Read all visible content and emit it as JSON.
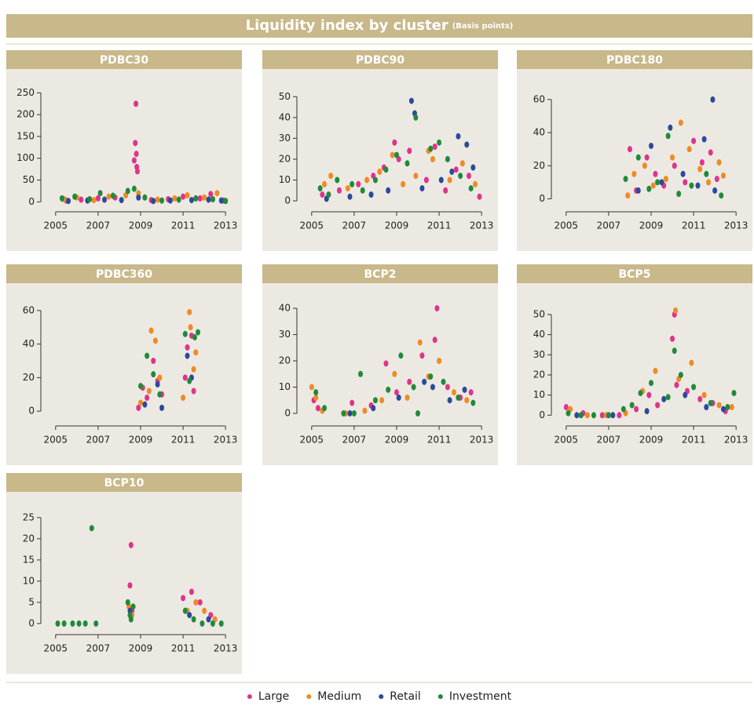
{
  "title": "Liquidity index by cluster",
  "subtitle": "(Basis points)",
  "legend": "bottom",
  "chart_data": [
    {
      "type": "scatter",
      "title": "PDBC30",
      "xlim": [
        2004.6,
        2013.4
      ],
      "xticks": [
        2005,
        2007,
        2009,
        2011,
        2013
      ],
      "ylim": [
        -12,
        265
      ],
      "yticks": [
        0,
        50,
        100,
        150,
        200,
        250
      ],
      "series": [
        {
          "name": "Large",
          "color": "#e0338a",
          "x": [
            2005.5,
            2006.2,
            2007.0,
            2007.8,
            2008.7,
            2008.75,
            2008.78,
            2008.8,
            2008.82,
            2008.85,
            2009.5,
            2010.3,
            2011.0,
            2011.8,
            2012.3,
            2012.9
          ],
          "values": [
            3,
            5,
            8,
            10,
            95,
            135,
            225,
            110,
            80,
            70,
            4,
            6,
            12,
            8,
            18,
            3
          ]
        },
        {
          "name": "Medium",
          "color": "#f08a24",
          "x": [
            2005.4,
            2006.0,
            2006.8,
            2007.5,
            2008.3,
            2008.9,
            2009.8,
            2010.6,
            2011.2,
            2012.0,
            2012.6,
            2013.0
          ],
          "values": [
            6,
            10,
            4,
            12,
            15,
            20,
            5,
            8,
            15,
            10,
            20,
            2
          ]
        },
        {
          "name": "Retail",
          "color": "#2b4a9b",
          "x": [
            2005.6,
            2006.5,
            2007.3,
            2008.1,
            2008.9,
            2009.6,
            2010.4,
            2011.4,
            2012.2,
            2012.8
          ],
          "values": [
            2,
            3,
            5,
            4,
            10,
            2,
            3,
            4,
            5,
            3
          ]
        },
        {
          "name": "Investment",
          "color": "#1f8a3c",
          "x": [
            2005.3,
            2005.9,
            2006.6,
            2007.1,
            2007.7,
            2008.4,
            2008.7,
            2009.2,
            2010.0,
            2010.8,
            2011.6,
            2012.4,
            2013.0
          ],
          "values": [
            8,
            12,
            6,
            20,
            14,
            25,
            30,
            10,
            3,
            5,
            8,
            6,
            2
          ]
        }
      ]
    },
    {
      "type": "scatter",
      "title": "PDBC90",
      "xlim": [
        2004.6,
        2013.4
      ],
      "xticks": [
        2005,
        2007,
        2009,
        2011,
        2013
      ],
      "ylim": [
        -3,
        55
      ],
      "yticks": [
        0,
        10,
        20,
        30,
        40,
        50
      ],
      "series": [
        {
          "name": "Large",
          "color": "#e0338a",
          "x": [
            2005.5,
            2006.3,
            2007.2,
            2007.9,
            2008.4,
            2008.9,
            2009.1,
            2009.6,
            2010.4,
            2010.8,
            2011.3,
            2011.8,
            2012.4,
            2012.9
          ],
          "values": [
            3,
            5,
            8,
            12,
            16,
            28,
            20,
            24,
            10,
            26,
            5,
            15,
            12,
            2
          ]
        },
        {
          "name": "Medium",
          "color": "#f08a24",
          "x": [
            2005.6,
            2005.9,
            2006.7,
            2007.6,
            2008.2,
            2008.8,
            2009.3,
            2009.9,
            2010.5,
            2010.7,
            2011.5,
            2012.1,
            2012.7
          ],
          "values": [
            8,
            12,
            6,
            10,
            14,
            22,
            8,
            12,
            24,
            20,
            10,
            18,
            8
          ]
        },
        {
          "name": "Retail",
          "color": "#2b4a9b",
          "x": [
            2005.7,
            2006.8,
            2007.8,
            2008.6,
            2009.7,
            2009.85,
            2010.2,
            2011.1,
            2011.6,
            2011.9,
            2012.3,
            2012.6
          ],
          "values": [
            1,
            2,
            3,
            5,
            48,
            42,
            6,
            10,
            14,
            31,
            27,
            16
          ]
        },
        {
          "name": "Investment",
          "color": "#1f8a3c",
          "x": [
            2005.4,
            2005.8,
            2006.2,
            2006.9,
            2007.4,
            2008.0,
            2008.5,
            2009.0,
            2009.5,
            2009.9,
            2010.6,
            2011.0,
            2011.4,
            2012.0,
            2012.5
          ],
          "values": [
            6,
            3,
            10,
            8,
            5,
            10,
            15,
            22,
            18,
            40,
            25,
            28,
            20,
            12,
            6
          ]
        }
      ]
    },
    {
      "type": "scatter",
      "title": "PDBC180",
      "xlim": [
        2004.6,
        2013.4
      ],
      "xticks": [
        2005,
        2007,
        2009,
        2011,
        2013
      ],
      "ylim": [
        -5,
        68
      ],
      "yticks": [
        0,
        20,
        40,
        60
      ],
      "series": [
        {
          "name": "Large",
          "color": "#e0338a",
          "x": [
            2008.0,
            2008.3,
            2008.8,
            2009.2,
            2009.6,
            2010.1,
            2010.6,
            2011.0,
            2011.4,
            2011.8,
            2012.1
          ],
          "values": [
            30,
            5,
            25,
            15,
            8,
            20,
            10,
            35,
            22,
            28,
            12
          ]
        },
        {
          "name": "Medium",
          "color": "#f08a24",
          "x": [
            2007.9,
            2008.2,
            2008.7,
            2009.1,
            2009.7,
            2010.0,
            2010.4,
            2010.8,
            2011.3,
            2011.7,
            2012.2,
            2012.4
          ],
          "values": [
            2,
            15,
            20,
            8,
            12,
            25,
            46,
            30,
            18,
            10,
            22,
            14
          ]
        },
        {
          "name": "Retail",
          "color": "#2b4a9b",
          "x": [
            2008.4,
            2009.0,
            2009.5,
            2009.9,
            2010.5,
            2011.2,
            2011.5,
            2011.9,
            2012.0
          ],
          "values": [
            5,
            32,
            10,
            43,
            15,
            8,
            36,
            60,
            5
          ]
        },
        {
          "name": "Investment",
          "color": "#1f8a3c",
          "x": [
            2007.8,
            2008.4,
            2008.9,
            2009.3,
            2009.8,
            2010.3,
            2010.9,
            2011.6,
            2012.3
          ],
          "values": [
            12,
            25,
            6,
            10,
            38,
            3,
            8,
            15,
            2
          ]
        }
      ]
    },
    {
      "type": "scatter",
      "title": "PDBC360",
      "xlim": [
        2004.6,
        2013.4
      ],
      "xticks": [
        2005,
        2007,
        2009,
        2011,
        2013
      ],
      "ylim": [
        -6,
        66
      ],
      "yticks": [
        0,
        20,
        40,
        60
      ],
      "series": [
        {
          "name": "Large",
          "color": "#e0338a",
          "x": [
            2008.9,
            2009.1,
            2009.3,
            2009.6,
            2009.8,
            2010.0,
            2011.1,
            2011.2,
            2011.4,
            2011.5
          ],
          "values": [
            2,
            14,
            8,
            30,
            18,
            10,
            20,
            38,
            45,
            12
          ]
        },
        {
          "name": "Medium",
          "color": "#f08a24",
          "x": [
            2009.0,
            2009.4,
            2009.5,
            2009.7,
            2009.9,
            2011.0,
            2011.3,
            2011.35,
            2011.5,
            2011.6
          ],
          "values": [
            5,
            12,
            48,
            42,
            20,
            8,
            59,
            50,
            25,
            35
          ]
        },
        {
          "name": "Retail",
          "color": "#2b4a9b",
          "x": [
            2009.2,
            2009.8,
            2010.0,
            2011.2,
            2011.4
          ],
          "values": [
            4,
            16,
            2,
            33,
            20
          ]
        },
        {
          "name": "Investment",
          "color": "#1f8a3c",
          "x": [
            2009.0,
            2009.3,
            2009.6,
            2009.9,
            2011.1,
            2011.3,
            2011.55,
            2011.7
          ],
          "values": [
            15,
            33,
            22,
            10,
            46,
            18,
            44,
            47
          ]
        }
      ]
    },
    {
      "type": "scatter",
      "title": "BCP2",
      "xlim": [
        2004.6,
        2013.4
      ],
      "xticks": [
        2005,
        2007,
        2009,
        2011,
        2013
      ],
      "ylim": [
        -3,
        43
      ],
      "yticks": [
        0,
        10,
        20,
        30,
        40
      ],
      "series": [
        {
          "name": "Large",
          "color": "#e0338a",
          "x": [
            2005.1,
            2005.3,
            2006.9,
            2007.8,
            2008.5,
            2009.0,
            2009.6,
            2010.2,
            2010.8,
            2010.9,
            2011.4,
            2012.0,
            2012.5
          ],
          "values": [
            5,
            2,
            4,
            3,
            19,
            8,
            12,
            22,
            28,
            40,
            10,
            6,
            8
          ]
        },
        {
          "name": "Medium",
          "color": "#f08a24",
          "x": [
            2005.0,
            2005.2,
            2005.5,
            2006.6,
            2007.5,
            2008.3,
            2008.9,
            2009.5,
            2010.1,
            2010.5,
            2011.0,
            2011.7,
            2012.3
          ],
          "values": [
            10,
            6,
            1,
            0,
            1,
            5,
            15,
            6,
            27,
            14,
            20,
            8,
            5
          ]
        },
        {
          "name": "Retail",
          "color": "#2b4a9b",
          "x": [
            2006.8,
            2007.9,
            2009.1,
            2010.3,
            2010.7,
            2011.5,
            2012.2
          ],
          "values": [
            0,
            2,
            6,
            12,
            10,
            5,
            9
          ]
        },
        {
          "name": "Investment",
          "color": "#1f8a3c",
          "x": [
            2005.2,
            2005.6,
            2006.5,
            2007.0,
            2007.3,
            2008.0,
            2008.6,
            2009.2,
            2009.8,
            2010.0,
            2010.6,
            2011.2,
            2011.9,
            2012.6
          ],
          "values": [
            8,
            2,
            0,
            0,
            15,
            5,
            9,
            22,
            10,
            0,
            14,
            12,
            6,
            4
          ]
        }
      ]
    },
    {
      "type": "scatter",
      "title": "BCP5",
      "xlim": [
        2004.6,
        2013.4
      ],
      "xticks": [
        2005,
        2007,
        2009,
        2011,
        2013
      ],
      "ylim": [
        -3,
        57
      ],
      "yticks": [
        0,
        10,
        20,
        30,
        40,
        50
      ],
      "series": [
        {
          "name": "Large",
          "color": "#e0338a",
          "x": [
            2005.0,
            2005.8,
            2006.7,
            2007.5,
            2008.3,
            2008.9,
            2009.3,
            2010.0,
            2010.1,
            2010.2,
            2010.7,
            2011.3,
            2011.9,
            2012.5
          ],
          "values": [
            4,
            1,
            0,
            0,
            3,
            10,
            5,
            38,
            50,
            15,
            12,
            8,
            6,
            2
          ]
        },
        {
          "name": "Medium",
          "color": "#f08a24",
          "x": [
            2005.2,
            2006.0,
            2006.9,
            2007.8,
            2008.6,
            2009.2,
            2010.15,
            2010.3,
            2010.9,
            2011.5,
            2012.2,
            2012.8
          ],
          "values": [
            3,
            0,
            0,
            1,
            12,
            22,
            52,
            18,
            26,
            10,
            5,
            4
          ]
        },
        {
          "name": "Retail",
          "color": "#2b4a9b",
          "x": [
            2005.5,
            2007.2,
            2008.8,
            2009.6,
            2010.6,
            2011.6,
            2012.4
          ],
          "values": [
            0,
            0,
            2,
            8,
            10,
            4,
            3
          ]
        },
        {
          "name": "Investment",
          "color": "#1f8a3c",
          "x": [
            2005.1,
            2005.7,
            2006.3,
            2007.0,
            2007.7,
            2008.1,
            2008.5,
            2009.0,
            2009.8,
            2010.1,
            2010.4,
            2011.0,
            2011.8,
            2012.6,
            2012.9
          ],
          "values": [
            1,
            0,
            0,
            0,
            3,
            5,
            11,
            16,
            9,
            32,
            20,
            14,
            6,
            4,
            11
          ]
        }
      ]
    },
    {
      "type": "scatter",
      "title": "BCP10",
      "xlim": [
        2004.6,
        2013.4
      ],
      "xticks": [
        2005,
        2007,
        2009,
        2011,
        2013
      ],
      "ylim": [
        -1.5,
        27
      ],
      "yticks": [
        0,
        5,
        10,
        15,
        20,
        25
      ],
      "series": [
        {
          "name": "Large",
          "color": "#e0338a",
          "x": [
            2008.5,
            2008.55,
            2008.6,
            2011.0,
            2011.4,
            2011.8,
            2012.3
          ],
          "values": [
            9,
            18.5,
            3,
            6,
            7.5,
            5,
            2
          ]
        },
        {
          "name": "Medium",
          "color": "#f08a24",
          "x": [
            2008.45,
            2008.6,
            2011.2,
            2011.6,
            2012.0,
            2012.5
          ],
          "values": [
            4,
            2,
            3,
            5,
            3,
            1
          ]
        },
        {
          "name": "Retail",
          "color": "#2b4a9b",
          "x": [
            2008.5,
            2011.3,
            2012.2
          ],
          "values": [
            3,
            2,
            1
          ]
        },
        {
          "name": "Investment",
          "color": "#1f8a3c",
          "x": [
            2005.1,
            2005.4,
            2005.8,
            2006.1,
            2006.4,
            2006.7,
            2006.9,
            2008.4,
            2008.5,
            2008.55,
            2008.65,
            2011.1,
            2011.5,
            2011.9,
            2012.4,
            2012.8
          ],
          "values": [
            0,
            0,
            0,
            0,
            0,
            22.5,
            0,
            5,
            2,
            1,
            4,
            3,
            1,
            0,
            0,
            0
          ]
        }
      ]
    }
  ]
}
